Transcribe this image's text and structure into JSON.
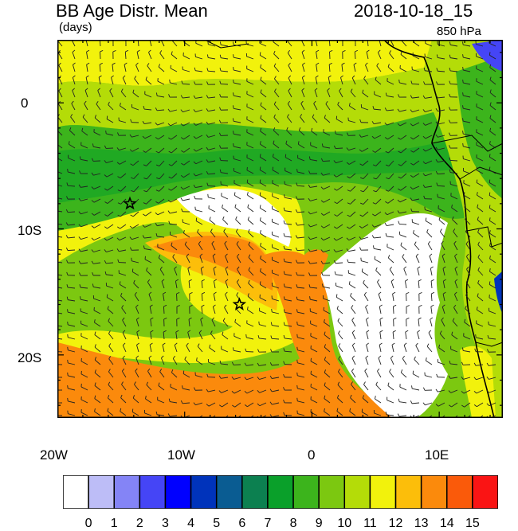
{
  "header": {
    "title": "BB Age Distr. Mean",
    "units": "(days)",
    "datetime": "2018-10-18_15",
    "level": "850 hPa"
  },
  "axes": {
    "lat_labels": [
      "0",
      "10S",
      "20S"
    ],
    "lon_labels": [
      "20W",
      "10W",
      "0",
      "10E"
    ]
  },
  "markers": [
    {
      "name": "star",
      "lon": -14.3,
      "lat": -8.0
    },
    {
      "name": "star",
      "lon": -5.7,
      "lat": -16.0
    }
  ],
  "colorbar": {
    "labels": [
      "0",
      "1",
      "2",
      "3",
      "4",
      "5",
      "6",
      "7",
      "8",
      "9",
      "10",
      "11",
      "12",
      "13",
      "14",
      "15"
    ],
    "colors": [
      "#ffffff",
      "#bdbdf7",
      "#8484f6",
      "#4545f6",
      "#0000ff",
      "#0033bb",
      "#0a5c92",
      "#0c8050",
      "#0aa02a",
      "#3cb41c",
      "#7cc810",
      "#b4dc08",
      "#f2f20c",
      "#fcbe0a",
      "#fb8a0c",
      "#fa5a0a",
      "#fa1414"
    ]
  }
}
